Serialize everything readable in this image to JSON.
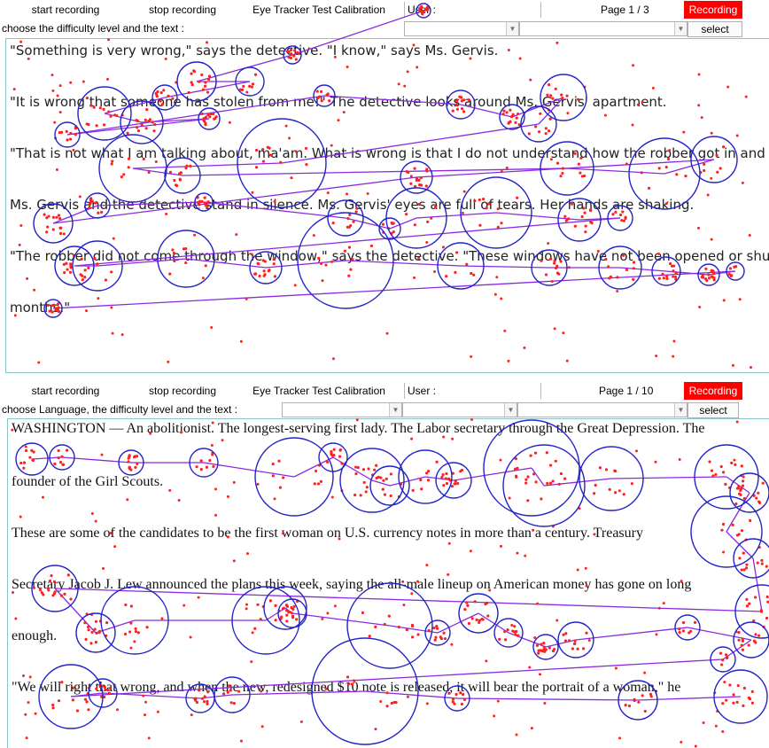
{
  "panel_top": {
    "toolbar": {
      "start_label": "start recording",
      "stop_label": "stop recording",
      "calib_label": "Eye Tracker Test Calibration",
      "user_label": "User :",
      "page_label": "Page 1 / 3",
      "recording_label": "Recording"
    },
    "selection": {
      "hint": "choose the difficulty level and the text :",
      "select_label": "select"
    },
    "lines": [
      "\"Something is very wrong,\" says the detective. \"I know,\" says Ms. Gervis.",
      "\"It is wrong that someone has stolen from me!\" The detective looks around Ms. Gervis' apartment.",
      "\"That is not what I am talking about, ma'am. What is wrong is that I do not understand how the robber got in and out.\"",
      "Ms. Gervis and the detective stand in silence. Ms. Gervis' eyes are full of tears. Her hands are shaking.",
      "\"The robber did not come through the window,\" says the detective. \"These windows have not been opened or shut in",
      "months.\""
    ]
  },
  "panel_bottom": {
    "toolbar": {
      "start_label": "start recording",
      "stop_label": "stop recording",
      "calib_label": "Eye Tracker Test Calibration",
      "user_label": "User :",
      "page_label": "Page 1 / 10",
      "recording_label": "Recording"
    },
    "selection": {
      "hint": "choose Language, the difficulty level and the text :",
      "select_label": "select"
    },
    "lines": [
      "WASHINGTON — An abolitionist. The longest-serving first lady. The Labor secretary through the Great Depression. The",
      "founder of the Girl Scouts.",
      "These are some of the candidates to be the first woman on U.S. currency notes in more than a century. Treasury",
      "Secretary Jacob J. Lew announced the plans this week, saying the all-male lineup on American money has gone on long",
      "enough.",
      "\"We will right that wrong, and when the new, redesigned $10 note is released, it will bear the portrait of a woman,\" he"
    ]
  },
  "colors": {
    "recording_bg": "#ff0000",
    "fixation_circle": "#2424c8",
    "saccade_line": "#8a2be2",
    "gaze_point": "#ff2020",
    "text_border": "#8fc3cc"
  }
}
